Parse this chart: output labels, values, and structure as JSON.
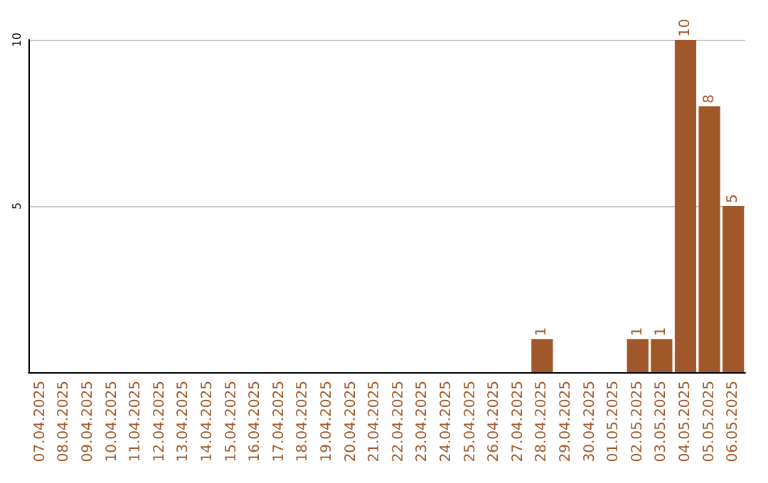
{
  "chart_data": {
    "type": "bar",
    "categories": [
      "07.04.2025",
      "08.04.2025",
      "09.04.2025",
      "10.04.2025",
      "11.04.2025",
      "12.04.2025",
      "13.04.2025",
      "14.04.2025",
      "15.04.2025",
      "16.04.2025",
      "17.04.2025",
      "18.04.2025",
      "19.04.2025",
      "20.04.2025",
      "21.04.2025",
      "22.04.2025",
      "23.04.2025",
      "24.04.2025",
      "25.04.2025",
      "26.04.2025",
      "27.04.2025",
      "28.04.2025",
      "29.04.2025",
      "30.04.2025",
      "01.05.2025",
      "02.05.2025",
      "03.05.2025",
      "04.05.2025",
      "05.05.2025",
      "06.05.2025"
    ],
    "values": [
      0,
      0,
      0,
      0,
      0,
      0,
      0,
      0,
      0,
      0,
      0,
      0,
      0,
      0,
      0,
      0,
      0,
      0,
      0,
      0,
      0,
      1,
      0,
      0,
      0,
      1,
      1,
      10,
      8,
      5
    ],
    "value_labels": [
      null,
      null,
      null,
      null,
      null,
      null,
      null,
      null,
      null,
      null,
      null,
      null,
      null,
      null,
      null,
      null,
      null,
      null,
      null,
      null,
      null,
      "1",
      null,
      null,
      null,
      "1",
      "1",
      "10",
      "8",
      "5"
    ],
    "color": "#a0582a",
    "ylim": [
      0,
      10
    ],
    "yticks": [
      {
        "value": 0,
        "label": null
      },
      5,
      10
    ],
    "grid": "y"
  }
}
